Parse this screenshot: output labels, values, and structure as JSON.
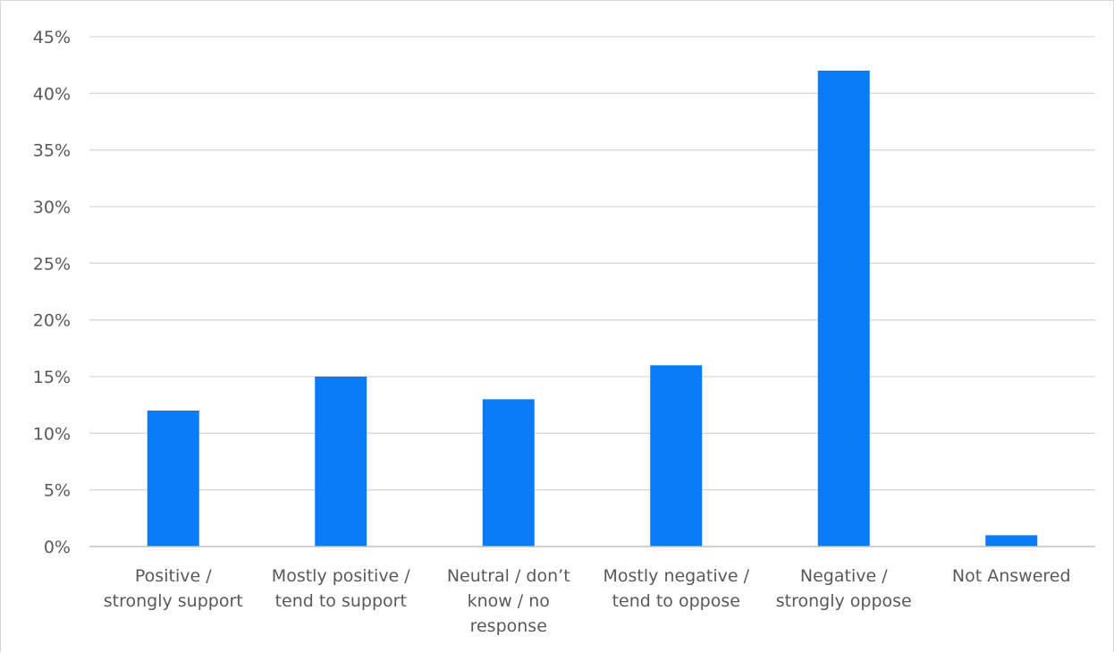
{
  "chart_data": {
    "type": "bar",
    "categories": [
      [
        "Positive /",
        "strongly support"
      ],
      [
        "Mostly positive /",
        "tend to support"
      ],
      [
        "Neutral / don’t",
        "know / no",
        "response"
      ],
      [
        "Mostly negative /",
        "tend to oppose"
      ],
      [
        "Negative /",
        "strongly oppose"
      ],
      [
        "Not Answered"
      ]
    ],
    "values": [
      12,
      15,
      13,
      16,
      42,
      1
    ],
    "ylim": [
      0,
      45
    ],
    "yticks": [
      0,
      5,
      10,
      15,
      20,
      25,
      30,
      35,
      40,
      45
    ],
    "ytick_labels": [
      "0%",
      "5%",
      "10%",
      "15%",
      "20%",
      "25%",
      "30%",
      "35%",
      "40%",
      "45%"
    ],
    "ytick_format": "percent",
    "title": "",
    "xlabel": "",
    "ylabel": "",
    "grid": true,
    "legend": "none",
    "colors": {
      "bar": "#0a7cf7",
      "grid": "#d9d9d9",
      "axis": "#bfbfbf",
      "text": "#595959"
    }
  }
}
